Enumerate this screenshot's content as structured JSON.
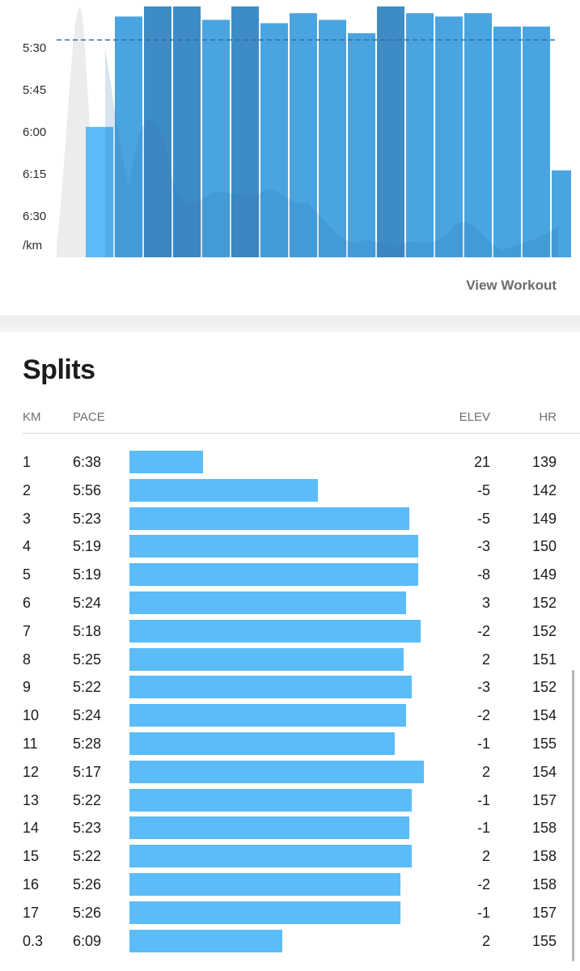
{
  "pace_chart": {
    "y_tick_labels": [
      "5:30",
      "5:45",
      "6:00",
      "6:15",
      "6:30",
      "/km"
    ],
    "view_workout_label": "View Workout",
    "colors": {
      "bar_light": "#5bbcf7",
      "bar_mid": "#4aa4e0",
      "bar_dark": "#3e8cc6",
      "elevation_area": "#ececee",
      "reference_line": "#2f6f99"
    }
  },
  "chart_data": {
    "type": "bar",
    "categories": [
      "1",
      "2",
      "3",
      "4",
      "5",
      "6",
      "7",
      "8",
      "9",
      "10",
      "11",
      "12",
      "13",
      "14",
      "15",
      "16",
      "17",
      "0.3"
    ],
    "values_seconds_per_km": [
      398,
      356,
      323,
      319,
      319,
      324,
      318,
      325,
      322,
      324,
      328,
      317,
      322,
      323,
      322,
      326,
      326,
      369
    ],
    "ylim_pace": [
      "6:35",
      "5:20"
    ],
    "reference_pace": "5:30"
  },
  "splits": {
    "title": "Splits",
    "headers": {
      "km": "KM",
      "pace": "PACE",
      "elev": "ELEV",
      "hr": "HR"
    },
    "rows": [
      {
        "km": "1",
        "pace": "6:38",
        "elev": "21",
        "hr": "139",
        "pace_fraction": 0.25
      },
      {
        "km": "2",
        "pace": "5:56",
        "elev": "-5",
        "hr": "142",
        "pace_fraction": 0.64
      },
      {
        "km": "3",
        "pace": "5:23",
        "elev": "-5",
        "hr": "149",
        "pace_fraction": 0.95
      },
      {
        "km": "4",
        "pace": "5:19",
        "elev": "-3",
        "hr": "150",
        "pace_fraction": 0.98
      },
      {
        "km": "5",
        "pace": "5:19",
        "elev": "-8",
        "hr": "149",
        "pace_fraction": 0.98
      },
      {
        "km": "6",
        "pace": "5:24",
        "elev": "3",
        "hr": "152",
        "pace_fraction": 0.94
      },
      {
        "km": "7",
        "pace": "5:18",
        "elev": "-2",
        "hr": "152",
        "pace_fraction": 0.99
      },
      {
        "km": "8",
        "pace": "5:25",
        "elev": "2",
        "hr": "151",
        "pace_fraction": 0.93
      },
      {
        "km": "9",
        "pace": "5:22",
        "elev": "-3",
        "hr": "152",
        "pace_fraction": 0.96
      },
      {
        "km": "10",
        "pace": "5:24",
        "elev": "-2",
        "hr": "154",
        "pace_fraction": 0.94
      },
      {
        "km": "11",
        "pace": "5:28",
        "elev": "-1",
        "hr": "155",
        "pace_fraction": 0.9
      },
      {
        "km": "12",
        "pace": "5:17",
        "elev": "2",
        "hr": "154",
        "pace_fraction": 1.0
      },
      {
        "km": "13",
        "pace": "5:22",
        "elev": "-1",
        "hr": "157",
        "pace_fraction": 0.96
      },
      {
        "km": "14",
        "pace": "5:23",
        "elev": "-1",
        "hr": "158",
        "pace_fraction": 0.95
      },
      {
        "km": "15",
        "pace": "5:22",
        "elev": "2",
        "hr": "158",
        "pace_fraction": 0.96
      },
      {
        "km": "16",
        "pace": "5:26",
        "elev": "-2",
        "hr": "158",
        "pace_fraction": 0.92
      },
      {
        "km": "17",
        "pace": "5:26",
        "elev": "-1",
        "hr": "157",
        "pace_fraction": 0.92
      },
      {
        "km": "0.3",
        "pace": "6:09",
        "elev": "2",
        "hr": "155",
        "pace_fraction": 0.52
      }
    ]
  }
}
